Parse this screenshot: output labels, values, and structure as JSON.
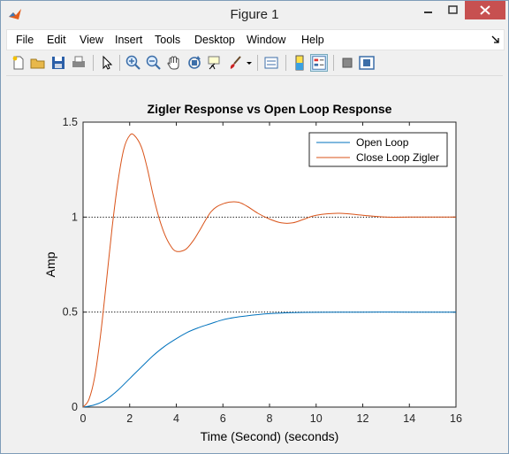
{
  "window": {
    "title": "Figure 1"
  },
  "menu": {
    "items": [
      "File",
      "Edit",
      "View",
      "Insert",
      "Tools",
      "Desktop",
      "Window",
      "Help"
    ]
  },
  "toolbar": {
    "icons": [
      "new-figure-icon",
      "open-icon",
      "save-icon",
      "print-icon",
      "pointer-icon",
      "zoom-in-icon",
      "zoom-out-icon",
      "pan-icon",
      "rotate-icon",
      "data-cursor-icon",
      "brush-icon",
      "brush-dropdown-icon",
      "link-plot-icon",
      "colorbar-icon",
      "legend-icon",
      "hide-plot-tools-icon",
      "show-plot-tools-icon"
    ]
  },
  "chart_data": {
    "type": "line",
    "title": "Zigler Response vs Open Loop Response",
    "xlabel": "Time (Second) (seconds)",
    "ylabel": "Amp",
    "xlim": [
      0,
      16
    ],
    "ylim": [
      0,
      1.5
    ],
    "xticks": [
      "0",
      "2",
      "4",
      "6",
      "8",
      "10",
      "12",
      "14",
      "16"
    ],
    "yticks": [
      "0",
      "0.5",
      "1",
      "1.5"
    ],
    "legend_position": "top-right",
    "grid": false,
    "reference_lines": [
      0.5,
      1.0
    ],
    "series": [
      {
        "name": "Open Loop",
        "color": "#0072bd",
        "x": [
          0,
          0.5,
          1,
          1.5,
          2,
          2.5,
          3,
          3.5,
          4,
          4.5,
          5,
          5.5,
          6,
          6.5,
          7,
          7.5,
          8,
          9,
          10,
          12,
          14,
          16
        ],
        "y": [
          0,
          0.012,
          0.04,
          0.09,
          0.15,
          0.21,
          0.27,
          0.32,
          0.36,
          0.395,
          0.42,
          0.44,
          0.46,
          0.472,
          0.48,
          0.487,
          0.492,
          0.497,
          0.499,
          0.5,
          0.5,
          0.5
        ]
      },
      {
        "name": "Close Loop Zigler",
        "color": "#d95319",
        "x": [
          0,
          0.25,
          0.5,
          0.75,
          1,
          1.25,
          1.5,
          1.75,
          2,
          2.2,
          2.5,
          2.75,
          3,
          3.25,
          3.5,
          3.75,
          4,
          4.4,
          4.75,
          5,
          5.5,
          6,
          6.6,
          7,
          7.5,
          8,
          8.5,
          9,
          9.5,
          10,
          11,
          12,
          13,
          14,
          15,
          16
        ],
        "y": [
          0,
          0.04,
          0.16,
          0.38,
          0.66,
          0.95,
          1.19,
          1.36,
          1.43,
          1.43,
          1.37,
          1.26,
          1.12,
          1.0,
          0.91,
          0.85,
          0.82,
          0.83,
          0.88,
          0.93,
          1.03,
          1.07,
          1.08,
          1.06,
          1.02,
          0.99,
          0.97,
          0.97,
          0.99,
          1.01,
          1.02,
          1.01,
          1.0,
          1.0,
          1.0,
          1.0
        ]
      }
    ]
  }
}
